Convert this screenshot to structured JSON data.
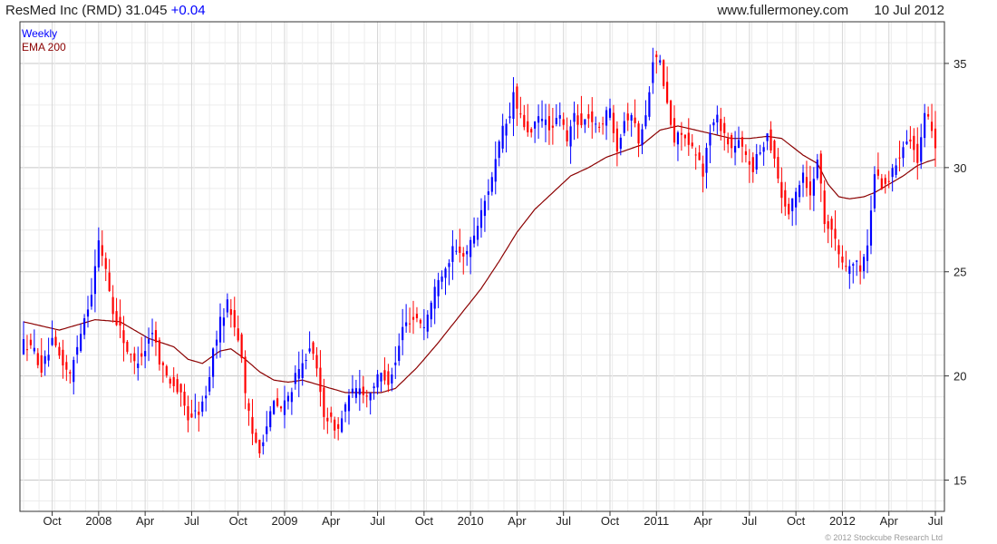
{
  "header": {
    "symbol_name": "ResMed Inc (RMD)",
    "price": "31.045",
    "change": "+0.04",
    "site": "www.fullermoney.com",
    "date": "10 Jul 2012"
  },
  "footer": {
    "copyright": "© 2012 Stockcube Research Ltd"
  },
  "colors": {
    "up": "#0000ff",
    "down": "#ff0000",
    "ema": "#8b0000",
    "grid": "#dcdcdc"
  },
  "chart_data": {
    "type": "candlestick",
    "frequency": "Weekly",
    "ylim": [
      13.5,
      37
    ],
    "xlim": [
      0,
      255
    ],
    "y_ticks": [
      15,
      20,
      25,
      30,
      35
    ],
    "x_ticks": [
      {
        "label": "Oct",
        "x": 8
      },
      {
        "label": "2008",
        "x": 21
      },
      {
        "label": "Apr",
        "x": 34
      },
      {
        "label": "Jul",
        "x": 47
      },
      {
        "label": "Oct",
        "x": 60
      },
      {
        "label": "2009",
        "x": 73
      },
      {
        "label": "Apr",
        "x": 86
      },
      {
        "label": "Jul",
        "x": 99
      },
      {
        "label": "Oct",
        "x": 112
      },
      {
        "label": "2010",
        "x": 125
      },
      {
        "label": "Apr",
        "x": 138
      },
      {
        "label": "Jul",
        "x": 151
      },
      {
        "label": "Oct",
        "x": 164
      },
      {
        "label": "2011",
        "x": 177
      },
      {
        "label": "Apr",
        "x": 190
      },
      {
        "label": "Jul",
        "x": 203
      },
      {
        "label": "Oct",
        "x": 216
      },
      {
        "label": "2012",
        "x": 229
      },
      {
        "label": "Apr",
        "x": 242
      },
      {
        "label": "Jul",
        "x": 255
      }
    ],
    "legend": [
      {
        "label": "Weekly",
        "color": "#0000ff"
      },
      {
        "label": "EMA 200",
        "color": "#8b0000"
      }
    ],
    "price_anchors": [
      [
        0,
        21.6
      ],
      [
        3,
        21.2
      ],
      [
        5,
        20.3
      ],
      [
        8,
        21.6
      ],
      [
        11,
        20.6
      ],
      [
        13,
        20.0
      ],
      [
        16,
        22.2
      ],
      [
        19,
        24.0
      ],
      [
        21,
        26.4
      ],
      [
        23,
        25.2
      ],
      [
        25,
        23.0
      ],
      [
        27,
        22.3
      ],
      [
        29,
        21.2
      ],
      [
        31,
        20.6
      ],
      [
        34,
        21.3
      ],
      [
        36,
        22.2
      ],
      [
        38,
        20.8
      ],
      [
        40,
        20.0
      ],
      [
        42,
        19.6
      ],
      [
        44,
        19.0
      ],
      [
        46,
        18.0
      ],
      [
        49,
        18.3
      ],
      [
        51,
        19.0
      ],
      [
        53,
        21.2
      ],
      [
        55,
        22.6
      ],
      [
        57,
        23.5
      ],
      [
        59,
        22.5
      ],
      [
        61,
        21.0
      ],
      [
        62,
        19.0
      ],
      [
        64,
        17.2
      ],
      [
        66,
        16.5
      ],
      [
        68,
        17.6
      ],
      [
        70,
        18.7
      ],
      [
        72,
        18.4
      ],
      [
        74,
        19.0
      ],
      [
        76,
        19.9
      ],
      [
        78,
        20.5
      ],
      [
        80,
        21.5
      ],
      [
        82,
        20.2
      ],
      [
        84,
        18.2
      ],
      [
        86,
        17.8
      ],
      [
        88,
        17.4
      ],
      [
        90,
        18.6
      ],
      [
        92,
        19.2
      ],
      [
        94,
        19.5
      ],
      [
        96,
        19.0
      ],
      [
        98,
        19.6
      ],
      [
        100,
        20.1
      ],
      [
        102,
        19.8
      ],
      [
        104,
        20.6
      ],
      [
        106,
        22.3
      ],
      [
        108,
        22.7
      ],
      [
        110,
        22.8
      ],
      [
        112,
        22.4
      ],
      [
        114,
        23.5
      ],
      [
        116,
        24.8
      ],
      [
        118,
        25.2
      ],
      [
        120,
        26.0
      ],
      [
        122,
        25.8
      ],
      [
        124,
        26.0
      ],
      [
        126,
        26.8
      ],
      [
        128,
        27.8
      ],
      [
        130,
        29.0
      ],
      [
        132,
        30.3
      ],
      [
        134,
        31.8
      ],
      [
        136,
        32.4
      ],
      [
        137,
        33.6
      ],
      [
        138,
        32.8
      ],
      [
        140,
        32.0
      ],
      [
        142,
        31.6
      ],
      [
        144,
        32.4
      ],
      [
        146,
        32.2
      ],
      [
        148,
        31.8
      ],
      [
        150,
        32.6
      ],
      [
        152,
        31.2
      ],
      [
        154,
        32.6
      ],
      [
        156,
        32.0
      ],
      [
        158,
        32.5
      ],
      [
        160,
        31.9
      ],
      [
        162,
        32.3
      ],
      [
        164,
        32.8
      ],
      [
        166,
        31.0
      ],
      [
        168,
        32.3
      ],
      [
        170,
        32.6
      ],
      [
        172,
        31.3
      ],
      [
        174,
        32.4
      ],
      [
        176,
        35.3
      ],
      [
        178,
        35.0
      ],
      [
        180,
        33.0
      ],
      [
        182,
        31.2
      ],
      [
        184,
        31.8
      ],
      [
        186,
        31.0
      ],
      [
        188,
        30.6
      ],
      [
        190,
        29.8
      ],
      [
        192,
        31.8
      ],
      [
        194,
        32.4
      ],
      [
        196,
        31.6
      ],
      [
        198,
        30.9
      ],
      [
        200,
        31.2
      ],
      [
        202,
        30.5
      ],
      [
        204,
        30.0
      ],
      [
        206,
        30.8
      ],
      [
        208,
        31.6
      ],
      [
        210,
        30.5
      ],
      [
        212,
        28.6
      ],
      [
        214,
        27.8
      ],
      [
        216,
        28.8
      ],
      [
        218,
        29.8
      ],
      [
        220,
        28.6
      ],
      [
        222,
        30.6
      ],
      [
        224,
        27.5
      ],
      [
        226,
        27.1
      ],
      [
        228,
        25.8
      ],
      [
        230,
        25.2
      ],
      [
        232,
        25.4
      ],
      [
        234,
        25.2
      ],
      [
        236,
        26.2
      ],
      [
        238,
        29.8
      ],
      [
        240,
        29.2
      ],
      [
        242,
        29.4
      ],
      [
        244,
        30.2
      ],
      [
        246,
        31.2
      ],
      [
        248,
        31.5
      ],
      [
        250,
        30.2
      ],
      [
        252,
        32.4
      ],
      [
        254,
        32.0
      ],
      [
        255,
        31.0
      ]
    ],
    "ema_anchors": [
      [
        0,
        22.6
      ],
      [
        10,
        22.2
      ],
      [
        20,
        22.7
      ],
      [
        27,
        22.6
      ],
      [
        35,
        21.8
      ],
      [
        42,
        21.4
      ],
      [
        46,
        20.8
      ],
      [
        50,
        20.6
      ],
      [
        55,
        21.2
      ],
      [
        58,
        21.3
      ],
      [
        62,
        20.8
      ],
      [
        66,
        20.2
      ],
      [
        70,
        19.8
      ],
      [
        74,
        19.7
      ],
      [
        78,
        19.8
      ],
      [
        82,
        19.6
      ],
      [
        86,
        19.4
      ],
      [
        90,
        19.2
      ],
      [
        95,
        19.2
      ],
      [
        100,
        19.2
      ],
      [
        104,
        19.4
      ],
      [
        110,
        20.4
      ],
      [
        116,
        21.6
      ],
      [
        122,
        22.9
      ],
      [
        128,
        24.2
      ],
      [
        133,
        25.5
      ],
      [
        138,
        26.9
      ],
      [
        143,
        28.0
      ],
      [
        148,
        28.8
      ],
      [
        153,
        29.6
      ],
      [
        158,
        30.0
      ],
      [
        163,
        30.5
      ],
      [
        168,
        30.8
      ],
      [
        173,
        31.1
      ],
      [
        178,
        31.8
      ],
      [
        183,
        32.0
      ],
      [
        188,
        31.8
      ],
      [
        193,
        31.6
      ],
      [
        198,
        31.4
      ],
      [
        203,
        31.4
      ],
      [
        208,
        31.5
      ],
      [
        212,
        31.4
      ],
      [
        215,
        31.0
      ],
      [
        218,
        30.6
      ],
      [
        222,
        30.2
      ],
      [
        225,
        29.2
      ],
      [
        228,
        28.6
      ],
      [
        231,
        28.5
      ],
      [
        235,
        28.6
      ],
      [
        238,
        28.8
      ],
      [
        242,
        29.2
      ],
      [
        246,
        29.6
      ],
      [
        250,
        30.1
      ],
      [
        253,
        30.3
      ],
      [
        255,
        30.4
      ]
    ]
  }
}
